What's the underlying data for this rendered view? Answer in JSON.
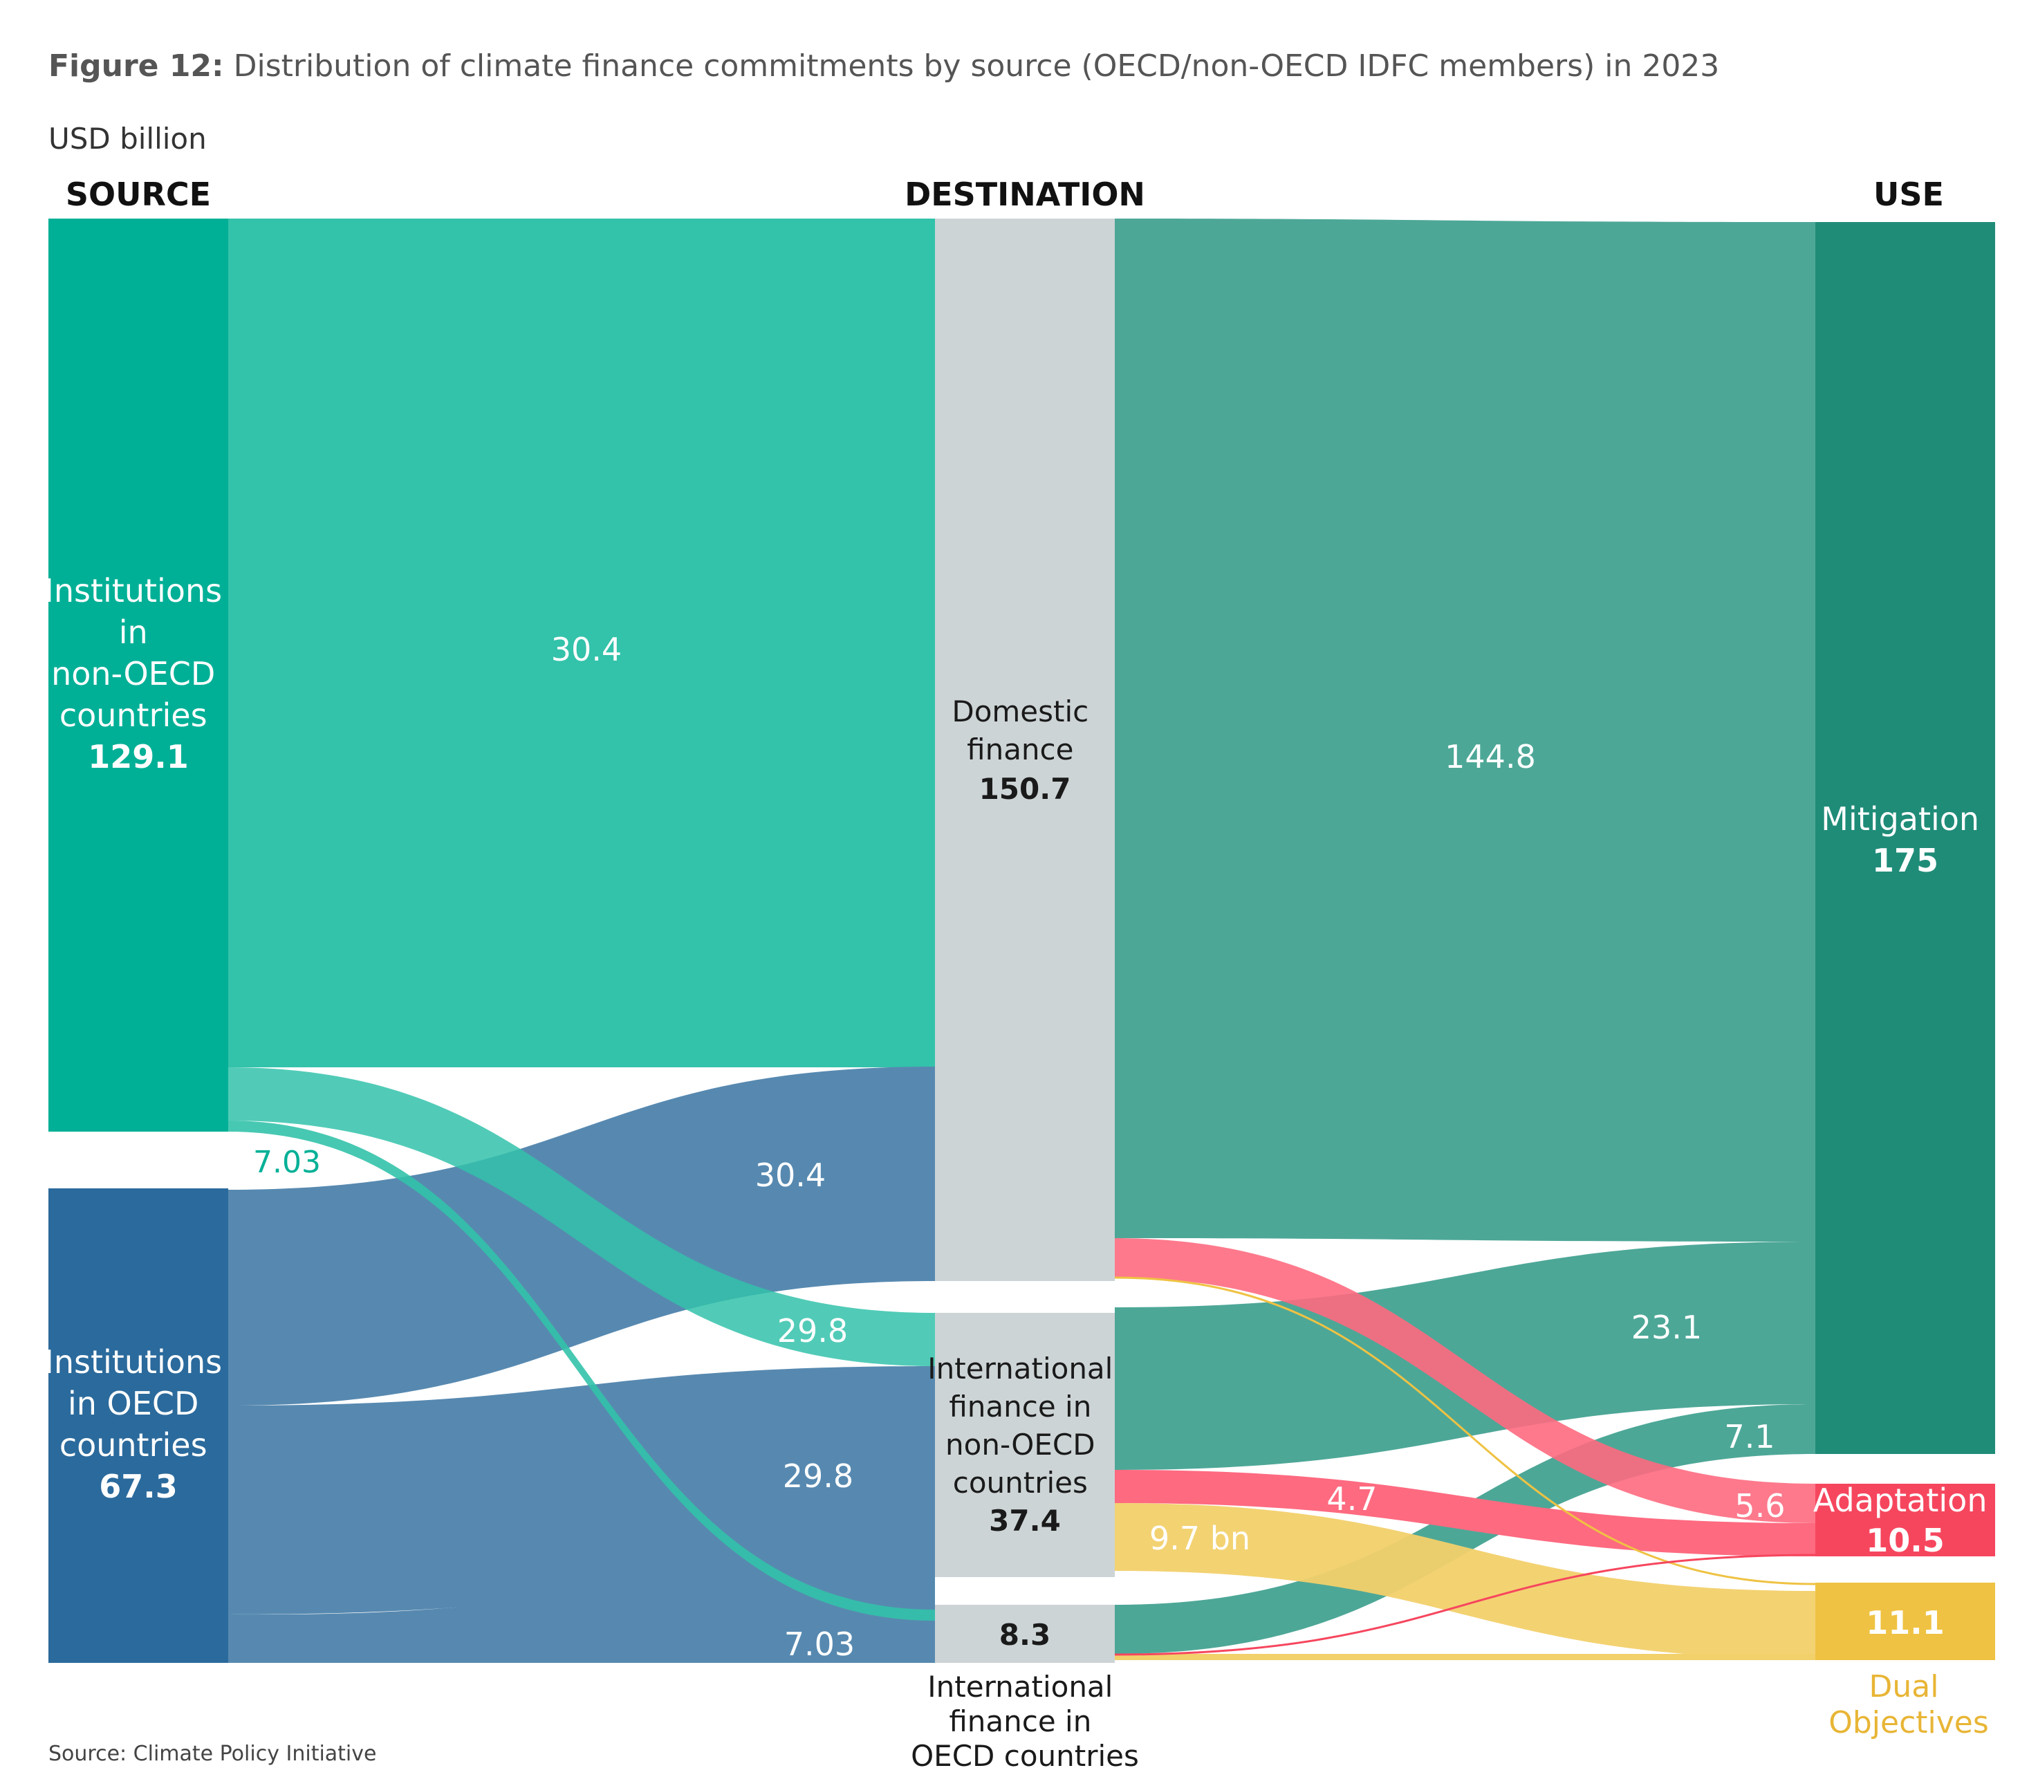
{
  "figure": {
    "title_prefix": "Figure 12:",
    "title_text": " Distribution of climate finance commitments by source (OECD/non-OECD IDFC members) in 2023",
    "unit": "USD billion",
    "source_note": "Source: Climate Policy Initiative"
  },
  "columns": {
    "source": "SOURCE",
    "destination": "DESTINATION",
    "use": "USE"
  },
  "nodes": {
    "non_oecd": {
      "lines": [
        "Institutions",
        "in",
        "non-OECD",
        "countries"
      ],
      "value": "129.1"
    },
    "oecd": {
      "lines": [
        "Institutions",
        "in OECD",
        "countries"
      ],
      "value": "67.3"
    },
    "domestic": {
      "lines": [
        "Domestic",
        "finance"
      ],
      "value": "150.7"
    },
    "intl_non_oecd": {
      "lines": [
        "International",
        "finance in",
        "non-OECD",
        "countries"
      ],
      "value": "37.4"
    },
    "intl_oecd": {
      "lines": [
        "International",
        "finance in",
        "OECD countries"
      ],
      "value": "8.3"
    },
    "mitigation": {
      "lines": [
        "Mitigation"
      ],
      "value": "175"
    },
    "adaptation": {
      "lines": [
        "Adaptation"
      ],
      "value": "10.5"
    },
    "dual": {
      "lines": [
        "Dual",
        "Objectives"
      ],
      "value": "11.1"
    }
  },
  "flow_labels": {
    "nonoecd_domestic": "30.4",
    "nonoecd_intl_oecd": "7.03",
    "oecd_domestic": "30.4",
    "intl_nonoecd_from_nonoecd": "29.8",
    "oecd_intl_nonoecd": "29.8",
    "oecd_intl_oecd": "7.03",
    "domestic_mitigation": "144.8",
    "intl_nonoecd_mitigation": "23.1",
    "intl_oecd_mitigation": "7.1",
    "domestic_adaptation": "5.6",
    "intl_nonoecd_adaptation": "4.7",
    "intl_nonoecd_dual": "9.7 bn"
  },
  "colors": {
    "non_oecd": "#00B096",
    "oecd": "#2B6A9C",
    "destination": "#CDD4D6",
    "mitigation": "#1F8C78",
    "adaptation": "#F6465E",
    "dual": "#EFC243",
    "dual_text": "#E8B535",
    "flow_non_oecd": "#33C2AA",
    "flow_oecd": "#5789B0",
    "flow_mitigation": "#4DA797",
    "flow_adaptation": "#FE6A80",
    "flow_dual": "#F2D06A"
  }
}
